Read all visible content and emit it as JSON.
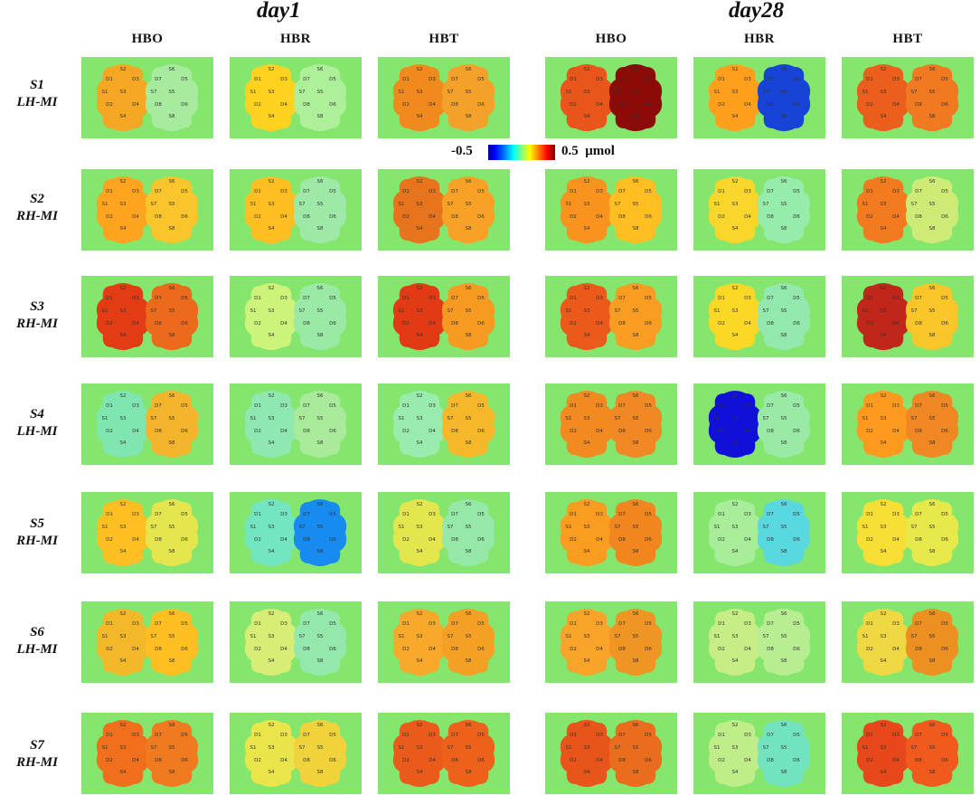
{
  "day_titles": [
    "day1",
    "day28"
  ],
  "column_headers": [
    "HBO",
    "HBR",
    "HBT",
    "HBO",
    "HBR",
    "HBT"
  ],
  "rows": [
    {
      "subject": "S1",
      "condition": "LH-MI"
    },
    {
      "subject": "S2",
      "condition": "RH-MI"
    },
    {
      "subject": "S3",
      "condition": "RH-MI"
    },
    {
      "subject": "S4",
      "condition": "LH-MI"
    },
    {
      "subject": "S5",
      "condition": "RH-MI"
    },
    {
      "subject": "S6",
      "condition": "LH-MI"
    },
    {
      "subject": "S7",
      "condition": "RH-MI"
    }
  ],
  "colorbar": {
    "min_label": "-0.5",
    "max_label": "0.5",
    "unit": "μmol"
  },
  "channel_labels": {
    "left": [
      "S2",
      "D1",
      "D3",
      "S1",
      "S3",
      "D2",
      "D4",
      "S4"
    ],
    "right": [
      "S6",
      "D7",
      "D5",
      "S7",
      "S5",
      "D8",
      "D6",
      "S8"
    ]
  },
  "panel_colors": {
    "background": "#85e66e",
    "maps": [
      [
        "#f5a623",
        "#ffd21f",
        "#f08a1c",
        "#e9551a",
        "#ff9f1c",
        "#ec5e1b"
      ],
      [
        "#ffa41f",
        "#ffbf22",
        "#e8731d",
        "#f7931e",
        "#f9d62c",
        "#f47a20"
      ],
      [
        "#e33c15",
        "#cdf37a",
        "#e23a15",
        "#ec5a1b",
        "#fbd826",
        "#c0261a"
      ],
      [
        "#7fe6b2",
        "#8ee8b0",
        "#99ebae",
        "#f08a21",
        "#1010d8",
        "#ff9a1f"
      ],
      [
        "#ffbf22",
        "#73e6c1",
        "#e3e74d",
        "#f99c1f",
        "#a8ed9a",
        "#f8df35"
      ],
      [
        "#f3b82a",
        "#d7ed76",
        "#f6a92a",
        "#f8a42a",
        "#c6ed86",
        "#f0d843"
      ],
      [
        "#ef6f1d",
        "#e9e54b",
        "#ea5b1b",
        "#e8541a",
        "#bfed8a",
        "#e7471a"
      ]
    ],
    "right_maps": [
      [
        "#a6eb9e",
        "#aef09a",
        "#f3a12a",
        "#8a0b08",
        "#1744d6",
        "#f07921"
      ],
      [
        "#f9c52b",
        "#9fe9a8",
        "#f7a226",
        "#ffbf22",
        "#96ecab",
        "#cfeb77"
      ],
      [
        "#ec6a1c",
        "#9ae9a6",
        "#f79a21",
        "#f99d22",
        "#93e8ad",
        "#f9c629"
      ],
      [
        "#f4b42b",
        "#a9eb9b",
        "#f5b82b",
        "#f08823",
        "#9aeaa7",
        "#ef8822"
      ],
      [
        "#e5e64e",
        "#188bf0",
        "#96e8a8",
        "#f2861e",
        "#5ad8df",
        "#e7e94a"
      ],
      [
        "#ffbf22",
        "#94e8ab",
        "#f4a026",
        "#ef9524",
        "#b9ed91",
        "#ec9021"
      ],
      [
        "#ef7a1f",
        "#f0d33a",
        "#ec621b",
        "#ea6d1d",
        "#72e3c0",
        "#f05a1c"
      ]
    ]
  }
}
